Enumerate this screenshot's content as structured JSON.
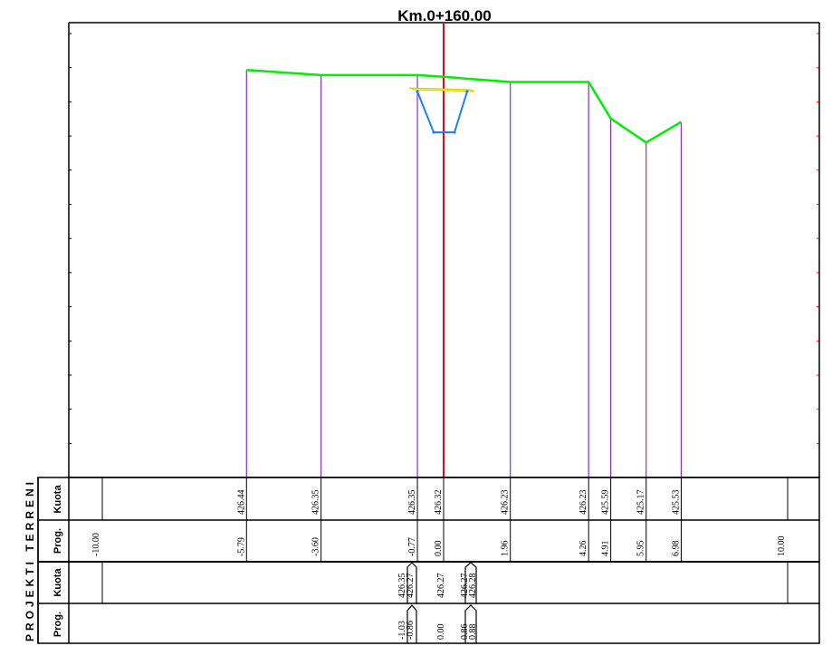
{
  "title": "Km.0+160.00",
  "side_label": "PROJEKTI TERRENI",
  "row_labels": {
    "kuota": "Kuota",
    "prog": "Prog."
  },
  "colors": {
    "terrain": "#00ee00",
    "project": "#1e7fff",
    "road": "#ffff33",
    "axis": "#ff0000",
    "verticals": "#8a2be2",
    "frame": "#000000"
  },
  "terrain_points": [
    {
      "prog": "-5.79",
      "kuota": "426.44"
    },
    {
      "prog": "-3.60",
      "kuota": "426.35"
    },
    {
      "prog": "-0.77",
      "kuota": "426.35"
    },
    {
      "prog": "0.00",
      "kuota": "426.32"
    },
    {
      "prog": "1.96",
      "kuota": "426.23"
    },
    {
      "prog": "4.26",
      "kuota": "426.23"
    },
    {
      "prog": "4.91",
      "kuota": "425.59"
    },
    {
      "prog": "5.95",
      "kuota": "425.17"
    },
    {
      "prog": "6.98",
      "kuota": "425.53"
    }
  ],
  "terrain_extents": {
    "left": "-10.00",
    "right": "10.00"
  },
  "project_points": [
    {
      "prog": "-1.03",
      "kuota": "426.35"
    },
    {
      "prog": "-0.86",
      "kuota": "426.27"
    },
    {
      "prog": "0.00",
      "kuota": "426.27"
    },
    {
      "prog": "0.86",
      "kuota": "426.27"
    },
    {
      "prog": "0.88",
      "kuota": "426.28"
    }
  ]
}
